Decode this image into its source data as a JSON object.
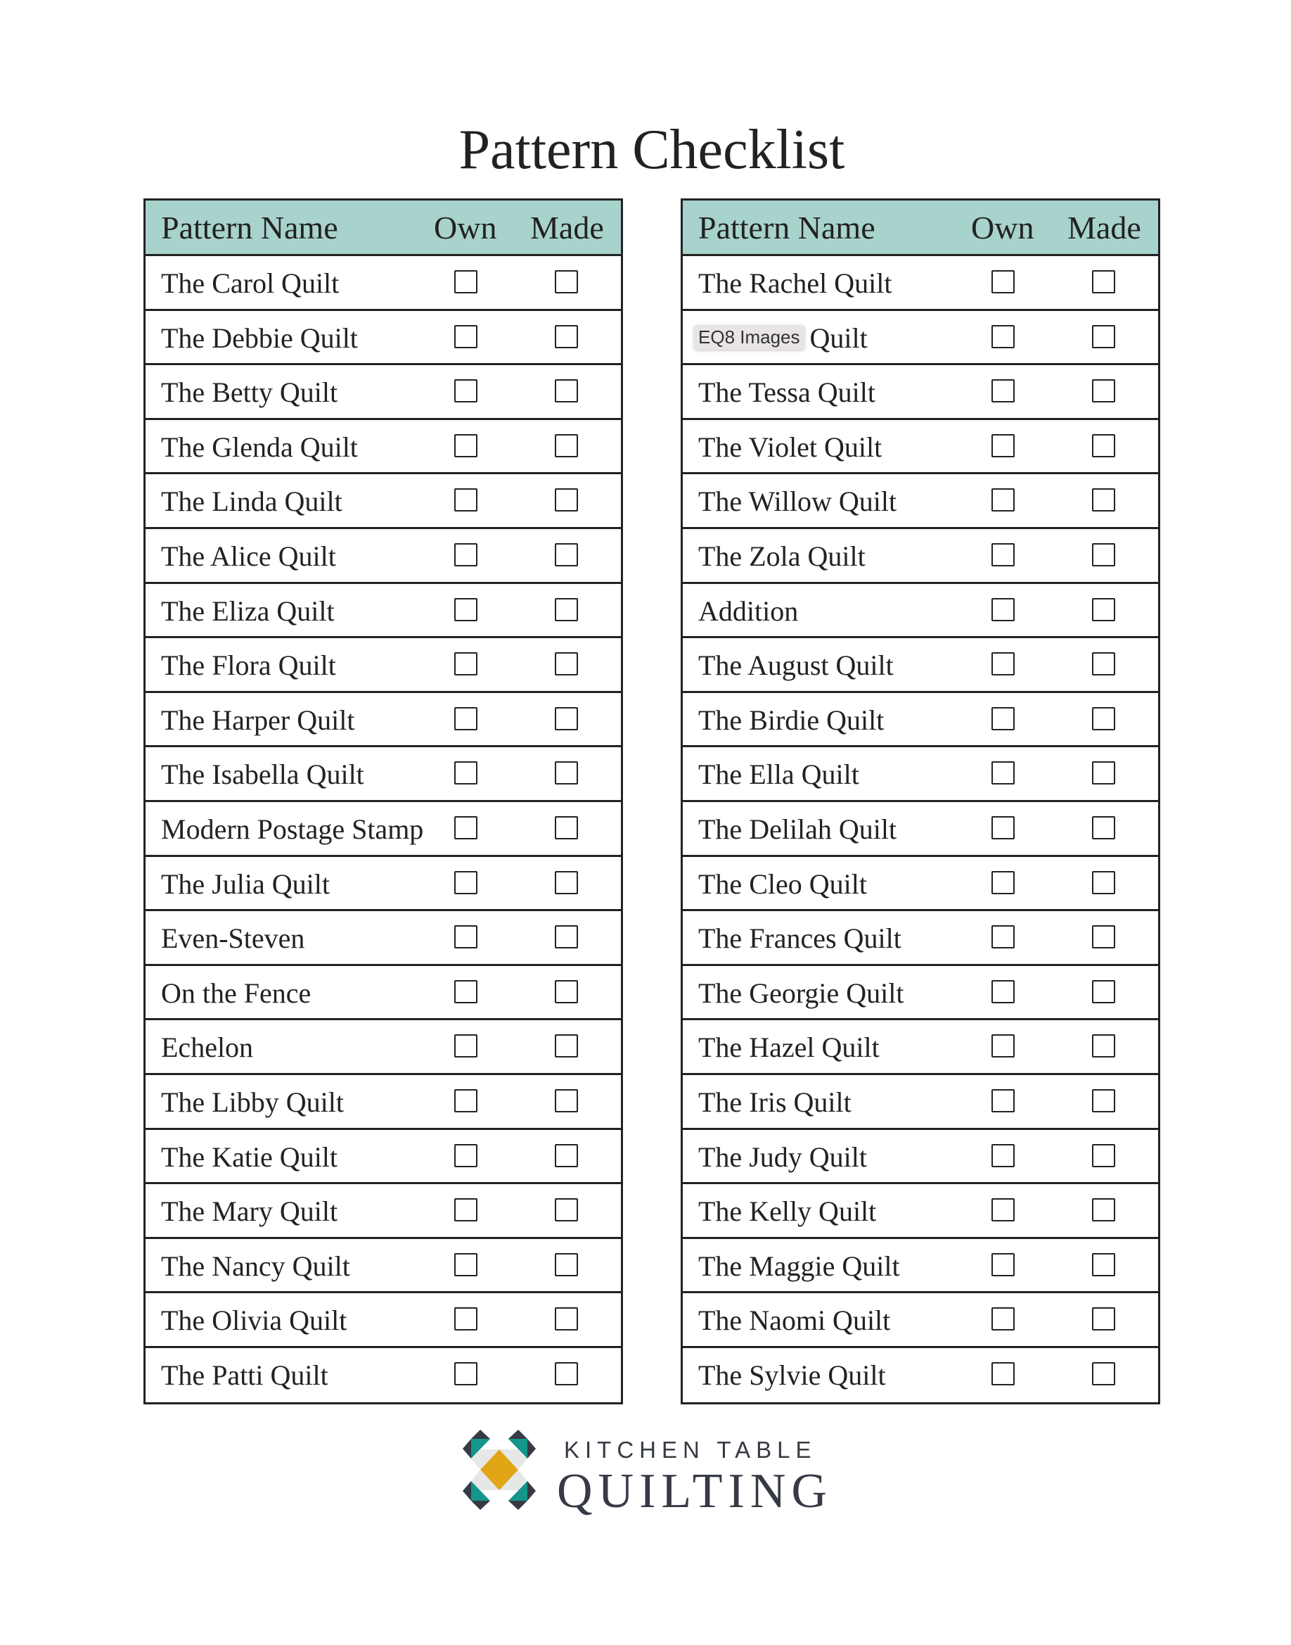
{
  "title": "Pattern Checklist",
  "headers": {
    "name": "Pattern Name",
    "own": "Own",
    "made": "Made"
  },
  "left_patterns": [
    "The Carol Quilt",
    "The Debbie Quilt",
    "The Betty Quilt",
    "The Glenda Quilt",
    "The Linda Quilt",
    "The Alice Quilt",
    "The Eliza Quilt",
    "The Flora Quilt",
    "The Harper Quilt",
    "The Isabella Quilt",
    "Modern Postage Stamp",
    "The Julia Quilt",
    "Even-Steven",
    "On the Fence",
    "Echelon",
    "The Libby Quilt",
    "The Katie Quilt",
    "The Mary Quilt",
    "The Nancy Quilt",
    "The Olivia Quilt",
    "The Patti Quilt"
  ],
  "right_patterns": [
    "The Rachel Quilt",
    "Quilt",
    "The Tessa Quilt",
    "The Violet Quilt",
    "The Willow Quilt",
    "The Zola Quilt",
    "Addition",
    "The August Quilt",
    "The Birdie Quilt",
    "The Ella Quilt",
    "The Delilah Quilt",
    "The Cleo Quilt",
    "The Frances Quilt",
    "The Georgie Quilt",
    "The Hazel Quilt",
    "The Iris Quilt",
    "The Judy Quilt",
    "The Kelly Quilt",
    "The Maggie Quilt",
    "The Naomi Quilt",
    "The Sylvie Quilt"
  ],
  "tooltip": {
    "text": "EQ8 Images",
    "row_index": 1
  },
  "logo": {
    "line1": "KITCHEN TABLE",
    "line2": "QUILTING"
  },
  "colors": {
    "header_bg": "#a8d2cc",
    "logo_teal": "#14968a",
    "logo_gold": "#e0a615",
    "logo_dark": "#363a45"
  }
}
